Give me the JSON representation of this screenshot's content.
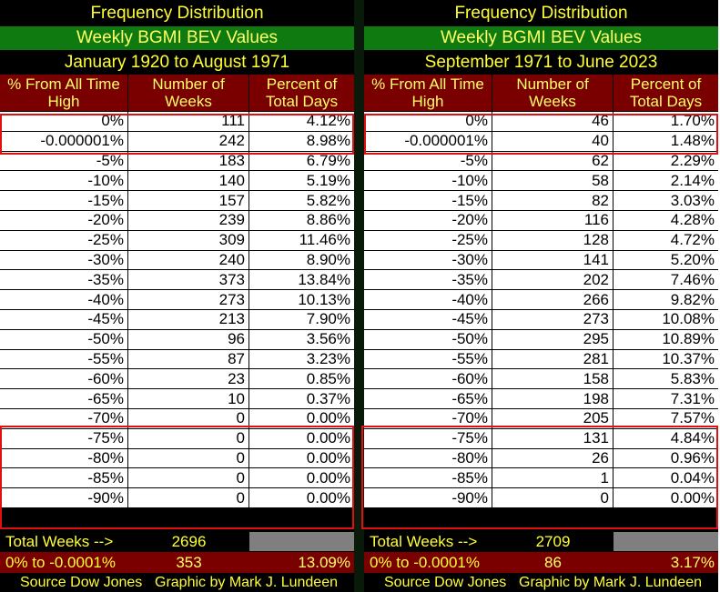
{
  "panels": [
    {
      "title": "Frequency Distribution",
      "subtitle": "Weekly BGMI BEV Values",
      "range": "January 1920 to August 1971",
      "headers": [
        "% From All Time High",
        "Number of Weeks",
        "Percent of Total Days"
      ],
      "rows": [
        [
          "0%",
          "111",
          "4.12%"
        ],
        [
          "-0.000001%",
          "242",
          "8.98%"
        ],
        [
          "-5%",
          "183",
          "6.79%"
        ],
        [
          "-10%",
          "140",
          "5.19%"
        ],
        [
          "-15%",
          "157",
          "5.82%"
        ],
        [
          "-20%",
          "239",
          "8.86%"
        ],
        [
          "-25%",
          "309",
          "11.46%"
        ],
        [
          "-30%",
          "240",
          "8.90%"
        ],
        [
          "-35%",
          "373",
          "13.84%"
        ],
        [
          "-40%",
          "273",
          "10.13%"
        ],
        [
          "-45%",
          "213",
          "7.90%"
        ],
        [
          "-50%",
          "96",
          "3.56%"
        ],
        [
          "-55%",
          "87",
          "3.23%"
        ],
        [
          "-60%",
          "23",
          "0.85%"
        ],
        [
          "-65%",
          "10",
          "0.37%"
        ],
        [
          "-70%",
          "0",
          "0.00%"
        ],
        [
          "-75%",
          "0",
          "0.00%"
        ],
        [
          "-80%",
          "0",
          "0.00%"
        ],
        [
          "-85%",
          "0",
          "0.00%"
        ],
        [
          "-90%",
          "0",
          "0.00%"
        ]
      ],
      "total_label": "Total Weeks -->",
      "total_value": "2696",
      "pct_label": "0% to -0.0001%",
      "pct_weeks": "353",
      "pct_value": "13.09%",
      "source": "Source Dow Jones",
      "credit": "Graphic by Mark J. Lundeen"
    },
    {
      "title": "Frequency Distribution",
      "subtitle": "Weekly BGMI BEV Values",
      "range": "September 1971 to June 2023",
      "headers": [
        "% From All Time High",
        "Number of Weeks",
        "Percent of Total Days"
      ],
      "rows": [
        [
          "0%",
          "46",
          "1.70%"
        ],
        [
          "-0.000001%",
          "40",
          "1.48%"
        ],
        [
          "-5%",
          "62",
          "2.29%"
        ],
        [
          "-10%",
          "58",
          "2.14%"
        ],
        [
          "-15%",
          "82",
          "3.03%"
        ],
        [
          "-20%",
          "116",
          "4.28%"
        ],
        [
          "-25%",
          "128",
          "4.72%"
        ],
        [
          "-30%",
          "141",
          "5.20%"
        ],
        [
          "-35%",
          "202",
          "7.46%"
        ],
        [
          "-40%",
          "266",
          "9.82%"
        ],
        [
          "-45%",
          "273",
          "10.08%"
        ],
        [
          "-50%",
          "295",
          "10.89%"
        ],
        [
          "-55%",
          "281",
          "10.37%"
        ],
        [
          "-60%",
          "158",
          "5.83%"
        ],
        [
          "-65%",
          "198",
          "7.31%"
        ],
        [
          "-70%",
          "205",
          "7.57%"
        ],
        [
          "-75%",
          "131",
          "4.84%"
        ],
        [
          "-80%",
          "26",
          "0.96%"
        ],
        [
          "-85%",
          "1",
          "0.04%"
        ],
        [
          "-90%",
          "0",
          "0.00%"
        ]
      ],
      "total_label": "Total Weeks -->",
      "total_value": "2709",
      "pct_label": "0% to -0.0001%",
      "pct_weeks": "86",
      "pct_value": "3.17%",
      "source": "Source Dow Jones",
      "credit": "Graphic by Mark J. Lundeen"
    }
  ]
}
